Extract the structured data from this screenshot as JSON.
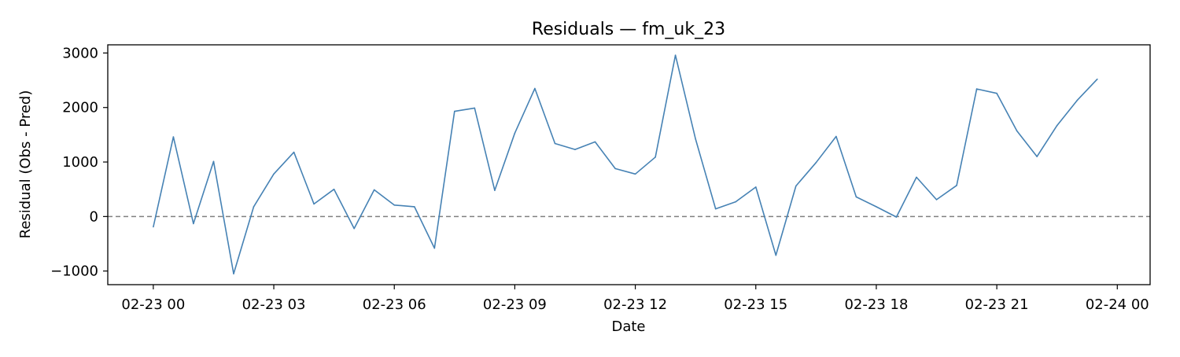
{
  "chart_data": {
    "type": "line",
    "title": "Residuals — fm_uk_23",
    "xlabel": "Date",
    "ylabel": "Residual (Obs - Pred)",
    "x_start": "2023-02-23 00:00",
    "x_step_minutes": 30,
    "x_ticks": [
      "02-23 00",
      "02-23 03",
      "02-23 06",
      "02-23 09",
      "02-23 12",
      "02-23 15",
      "02-23 18",
      "02-23 21",
      "02-24 00"
    ],
    "xlim": [
      "02-22 22:52",
      "02-24 00:49"
    ],
    "y_ticks": [
      -1000,
      0,
      1000,
      2000,
      3000
    ],
    "ylim": [
      -1250,
      3150
    ],
    "grid": false,
    "reference_line": {
      "y": 0,
      "style": "dashed",
      "color": "#808080"
    },
    "series": [
      {
        "color": "#4682b4",
        "values": [
          -190,
          1460,
          -130,
          1010,
          -1050,
          180,
          780,
          1180,
          230,
          500,
          -220,
          490,
          210,
          180,
          -580,
          1930,
          1990,
          480,
          1530,
          2350,
          1340,
          1230,
          1370,
          880,
          780,
          1090,
          2960,
          1420,
          140,
          270,
          540,
          -710,
          560,
          990,
          1470,
          360,
          180,
          -10,
          720,
          310,
          570,
          2340,
          2260,
          1570,
          1100,
          1670,
          2130,
          2520
        ]
      }
    ]
  }
}
